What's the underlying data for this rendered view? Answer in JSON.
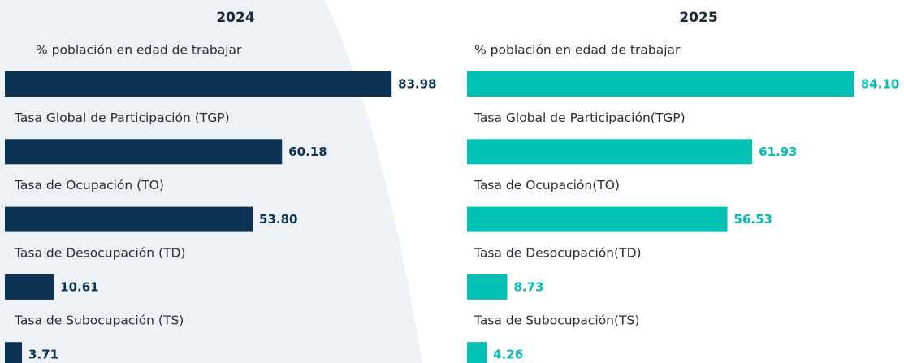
{
  "chart_data": [
    {
      "type": "bar",
      "title": "2024",
      "color": "#0d3354",
      "categories": [
        "% población en edad de trabajar",
        "Tasa Global de Participación (TGP)",
        "Tasa de Ocupación (TO)",
        "Tasa de Desocupación (TD)",
        "Tasa de Subocupación (TS)"
      ],
      "values": [
        83.98,
        60.18,
        53.8,
        10.61,
        3.71
      ],
      "value_labels": [
        "83.98",
        "60.18",
        "53.80",
        "10.61",
        "3.71"
      ]
    },
    {
      "type": "bar",
      "title": "2025",
      "color": "#00bfb3",
      "categories": [
        "% población en edad de trabajar",
        "Tasa Global de Participación(TGP)",
        "Tasa de Ocupación(TO)",
        "Tasa de Desocupación(TD)",
        "Tasa de Subocupación(TS)"
      ],
      "values": [
        84.1,
        61.93,
        56.53,
        8.73,
        4.26
      ],
      "value_labels": [
        "84.10",
        "61.93",
        "56.53",
        "8.73",
        "4.26"
      ]
    }
  ]
}
